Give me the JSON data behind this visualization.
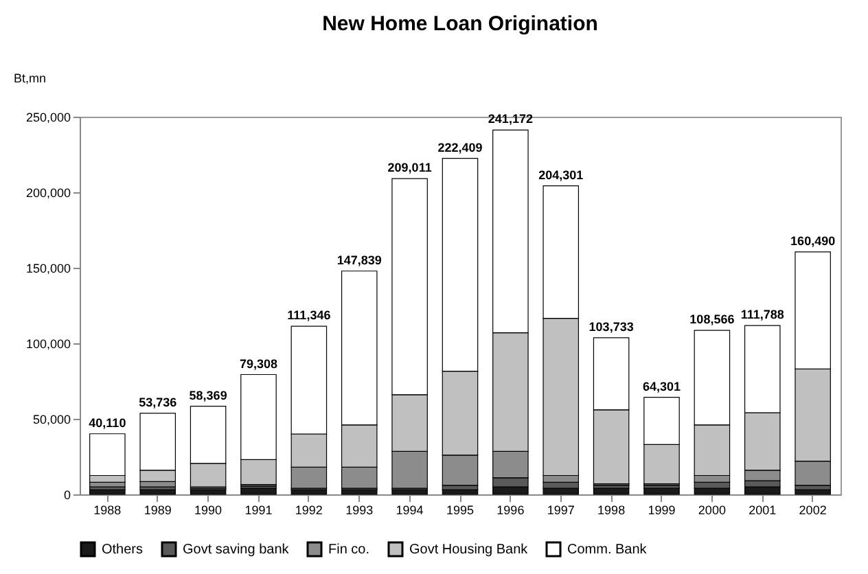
{
  "chart_data": {
    "type": "bar",
    "title": "New Home Loan Origination",
    "ylabel": "Bt,mn",
    "stacked": true,
    "grid": false,
    "legend": "bottom",
    "categories": [
      "1988",
      "1989",
      "1990",
      "1991",
      "1992",
      "1993",
      "1994",
      "1995",
      "1996",
      "1997",
      "1998",
      "1999",
      "2000",
      "2001",
      "2002"
    ],
    "series": [
      {
        "name": "Others",
        "color": "#1a1a1a",
        "values": [
          3000,
          3000,
          3000,
          4000,
          3000,
          3000,
          3000,
          3000,
          5000,
          4000,
          4000,
          4000,
          4000,
          5000,
          3000
        ]
      },
      {
        "name": "Govt saving bank",
        "color": "#5a5a5a",
        "values": [
          2000,
          2000,
          1000,
          1500,
          1000,
          1000,
          1000,
          3000,
          6000,
          4000,
          2000,
          2000,
          4000,
          4000,
          3000
        ]
      },
      {
        "name": "Fin co.",
        "color": "#8c8c8c",
        "values": [
          3000,
          3500,
          1000,
          1000,
          14000,
          14000,
          24500,
          20000,
          17500,
          4500,
          1000,
          1000,
          4500,
          7000,
          16000
        ]
      },
      {
        "name": "Govt Housing Bank",
        "color": "#c0c0c0",
        "values": [
          4500,
          7500,
          15500,
          16500,
          22000,
          28000,
          37500,
          55500,
          78500,
          104000,
          49000,
          26000,
          33500,
          38000,
          61000
        ]
      },
      {
        "name": "Comm. Bank",
        "color": "#ffffff",
        "values": [
          27610,
          37736,
          37869,
          56308,
          71346,
          101839,
          143011,
          140909,
          134172,
          87801,
          47733,
          31301,
          62566,
          57788,
          77490
        ]
      }
    ],
    "totals": [
      "40,110",
      "53,736",
      "58,369",
      "79,308",
      "111,346",
      "147,839",
      "209,011",
      "222,409",
      "241,172",
      "204,301",
      "103,733",
      "64,301",
      "108,566",
      "111,788",
      "160,490"
    ],
    "ylim": [
      0,
      250000
    ],
    "yticks": [
      {
        "value": 0,
        "label": "0"
      },
      {
        "value": 50000,
        "label": "50,000"
      },
      {
        "value": 100000,
        "label": "100,000"
      },
      {
        "value": 150000,
        "label": "150,000"
      },
      {
        "value": 200000,
        "label": "200,000"
      },
      {
        "value": 250000,
        "label": "250,000"
      }
    ]
  }
}
